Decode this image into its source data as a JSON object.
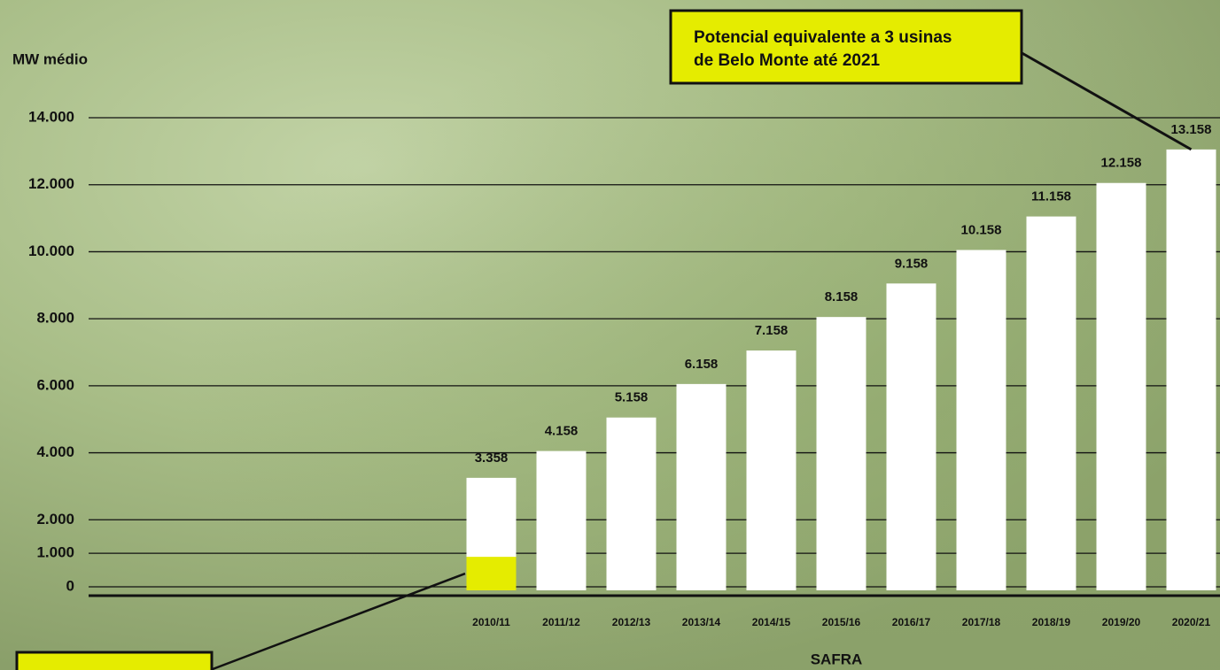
{
  "chart_data": {
    "type": "bar",
    "y_label": "MW médio",
    "x_label": "SAFRA",
    "categories": [
      "2010/11",
      "2011/12",
      "2012/13",
      "2013/14",
      "2014/15",
      "2015/16",
      "2016/17",
      "2017/18",
      "2018/19",
      "2019/20",
      "2020/21"
    ],
    "series": [
      {
        "color": "#ffffff",
        "values": [
          3358,
          4158,
          5158,
          6158,
          7158,
          8158,
          9158,
          10158,
          11158,
          12158,
          13158
        ],
        "value_labels": [
          "3.358",
          "4.158",
          "5.158",
          "6.158",
          "7.158",
          "8.158",
          "9.158",
          "10.158",
          "11.158",
          "12.158",
          "13.158"
        ]
      },
      {
        "color": "#e5ec00",
        "values": [
          1000,
          null,
          null,
          null,
          null,
          null,
          null,
          null,
          null,
          null,
          null
        ]
      }
    ],
    "ylim": [
      0,
      14000
    ],
    "yticks": [
      {
        "value": 0,
        "label": "0"
      },
      {
        "value": 1000,
        "label": "1.000"
      },
      {
        "value": 2000,
        "label": "2.000"
      },
      {
        "value": 4000,
        "label": "4.000"
      },
      {
        "value": 6000,
        "label": "6.000"
      },
      {
        "value": 8000,
        "label": "8.000"
      },
      {
        "value": 10000,
        "label": "10.000"
      },
      {
        "value": 12000,
        "label": "12.000"
      },
      {
        "value": 14000,
        "label": "14.000"
      }
    ],
    "grid": true,
    "annotation": {
      "lines": [
        "Potencial equivalente a 3 usinas",
        "de Belo Monte até 2021"
      ],
      "color": "#e5ec00"
    }
  }
}
